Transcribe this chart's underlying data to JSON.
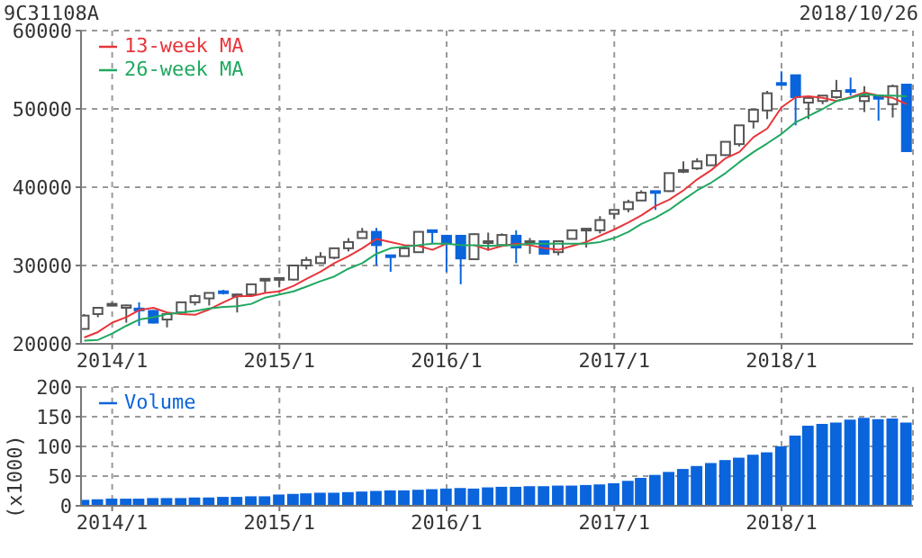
{
  "chart_data": [
    {
      "type": "candlestick",
      "title": "9C31108A",
      "subtitle": "2018/10/26",
      "x": [
        "2013-11",
        "2013-12",
        "2014-01",
        "2014-02",
        "2014-03",
        "2014-04",
        "2014-05",
        "2014-06",
        "2014-07",
        "2014-08",
        "2014-09",
        "2014-10",
        "2014-11",
        "2014-12",
        "2015-01",
        "2015-02",
        "2015-03",
        "2015-04",
        "2015-05",
        "2015-06",
        "2015-07",
        "2015-08",
        "2015-09",
        "2015-10",
        "2015-11",
        "2015-12",
        "2016-01",
        "2016-02",
        "2016-03",
        "2016-04",
        "2016-05",
        "2016-06",
        "2016-07",
        "2016-08",
        "2016-09",
        "2016-10",
        "2016-11",
        "2016-12",
        "2017-01",
        "2017-02",
        "2017-03",
        "2017-04",
        "2017-05",
        "2017-06",
        "2017-07",
        "2017-08",
        "2017-09",
        "2017-10",
        "2017-11",
        "2017-12",
        "2018-01",
        "2018-02",
        "2018-03",
        "2018-04",
        "2018-05",
        "2018-06",
        "2018-07",
        "2018-08",
        "2018-09",
        "2018-10"
      ],
      "ohlc": [
        [
          21900,
          23800,
          21800,
          23600
        ],
        [
          23800,
          24600,
          23400,
          24600
        ],
        [
          25000,
          25300,
          24800,
          25100
        ],
        [
          24600,
          25000,
          22700,
          24900
        ],
        [
          24500,
          25300,
          22300,
          24300
        ],
        [
          24200,
          24300,
          22600,
          22700
        ],
        [
          23100,
          23900,
          22100,
          23800
        ],
        [
          24000,
          25300,
          24000,
          25300
        ],
        [
          25300,
          26300,
          24900,
          26100
        ],
        [
          25800,
          26500,
          24900,
          26500
        ],
        [
          26700,
          26900,
          26300,
          26500
        ],
        [
          26200,
          26400,
          24000,
          26300
        ],
        [
          26300,
          27600,
          26200,
          27600
        ],
        [
          28200,
          28300,
          26500,
          28300
        ],
        [
          28300,
          28400,
          27200,
          28400
        ],
        [
          28200,
          30000,
          28100,
          30000
        ],
        [
          30000,
          31100,
          29500,
          30700
        ],
        [
          30300,
          31700,
          30300,
          31100
        ],
        [
          31000,
          32200,
          30800,
          32200
        ],
        [
          32200,
          33500,
          31800,
          33000
        ],
        [
          33500,
          34800,
          33500,
          34300
        ],
        [
          34300,
          34800,
          30000,
          32600
        ],
        [
          31300,
          31300,
          29200,
          31200
        ],
        [
          31200,
          32200,
          31200,
          32200
        ],
        [
          31700,
          34300,
          31700,
          34300
        ],
        [
          34500,
          34500,
          32800,
          34300
        ],
        [
          33800,
          33800,
          29200,
          32800
        ],
        [
          33800,
          33800,
          27600,
          30900
        ],
        [
          30800,
          34100,
          30800,
          34000
        ],
        [
          33000,
          34200,
          31900,
          33100
        ],
        [
          32600,
          34100,
          32600,
          33900
        ],
        [
          33800,
          34500,
          30300,
          32300
        ],
        [
          33000,
          33500,
          31500,
          33100
        ],
        [
          33100,
          33100,
          31500,
          31500
        ],
        [
          31700,
          33100,
          31300,
          33100
        ],
        [
          33400,
          34500,
          33400,
          34500
        ],
        [
          34600,
          34700,
          32300,
          34700
        ],
        [
          34500,
          36300,
          34100,
          35800
        ],
        [
          36600,
          37100,
          36000,
          37100
        ],
        [
          37200,
          38400,
          36800,
          38100
        ],
        [
          38300,
          39600,
          38300,
          39300
        ],
        [
          39500,
          39500,
          37100,
          39300
        ],
        [
          39500,
          41800,
          39400,
          41800
        ],
        [
          42100,
          43300,
          41800,
          42200
        ],
        [
          42400,
          43700,
          42200,
          43300
        ],
        [
          42800,
          44100,
          42800,
          44100
        ],
        [
          44100,
          45800,
          44000,
          45800
        ],
        [
          45500,
          47900,
          45200,
          47900
        ],
        [
          48400,
          49900,
          47500,
          49900
        ],
        [
          49800,
          52300,
          48700,
          52000
        ],
        [
          53300,
          54800,
          53200,
          53200
        ],
        [
          54300,
          54300,
          47900,
          51500
        ],
        [
          50800,
          51700,
          48700,
          51400
        ],
        [
          51000,
          51700,
          50600,
          51700
        ],
        [
          51500,
          53700,
          51300,
          52300
        ],
        [
          52400,
          54000,
          51700,
          52300
        ],
        [
          51000,
          52900,
          49600,
          51600
        ],
        [
          51700,
          51700,
          48500,
          51300
        ],
        [
          50600,
          53100,
          48900,
          52900
        ],
        [
          53100,
          53100,
          44600,
          44600
        ]
      ],
      "colors": [
        "#ffffff",
        "#ffffff",
        "#ffffff",
        "#ffffff",
        "#0a64dc",
        "#0a64dc",
        "#ffffff",
        "#ffffff",
        "#ffffff",
        "#ffffff",
        "#0a64dc",
        "#ffffff",
        "#ffffff",
        "#ffffff",
        "#ffffff",
        "#ffffff",
        "#ffffff",
        "#ffffff",
        "#ffffff",
        "#ffffff",
        "#ffffff",
        "#0a64dc",
        "#0a64dc",
        "#ffffff",
        "#ffffff",
        "#0a64dc",
        "#0a64dc",
        "#0a64dc",
        "#ffffff",
        "#ffffff",
        "#ffffff",
        "#0a64dc",
        "#ffffff",
        "#0a64dc",
        "#ffffff",
        "#ffffff",
        "#ffffff",
        "#ffffff",
        "#ffffff",
        "#ffffff",
        "#ffffff",
        "#0a64dc",
        "#ffffff",
        "#ffffff",
        "#ffffff",
        "#ffffff",
        "#ffffff",
        "#ffffff",
        "#ffffff",
        "#ffffff",
        "#0a64dc",
        "#0a64dc",
        "#ffffff",
        "#ffffff",
        "#ffffff",
        "#0a64dc",
        "#ffffff",
        "#0a64dc",
        "#ffffff",
        "#0a64dc"
      ],
      "series": [
        {
          "type": "line",
          "name": "13-week MA",
          "color": "#e8353a",
          "values": [
            20800,
            21500,
            22700,
            23400,
            24300,
            24600,
            24000,
            23800,
            23700,
            24400,
            25300,
            26100,
            26100,
            26500,
            26700,
            27400,
            28300,
            29200,
            30300,
            31200,
            32200,
            33400,
            33000,
            32600,
            32500,
            32000,
            32800,
            null,
            32600,
            32000,
            32500,
            32800,
            32600,
            32200,
            32000,
            32500,
            33000,
            33800,
            34600,
            35500,
            36400,
            37600,
            38400,
            39600,
            41000,
            42200,
            43700,
            44500,
            46400,
            47500,
            50200,
            51500,
            51600,
            51400,
            51000,
            51500,
            52100,
            51700,
            51400,
            50600
          ]
        },
        {
          "type": "line",
          "name": "26-week MA",
          "color": "#20a860",
          "values": [
            20400,
            20500,
            21300,
            22300,
            23100,
            23400,
            23800,
            24000,
            24200,
            24500,
            24700,
            24800,
            25100,
            25900,
            26300,
            26700,
            27300,
            28000,
            28600,
            29600,
            30300,
            31500,
            32200,
            32400,
            32600,
            32800,
            32800,
            32600,
            32600,
            32500,
            32600,
            32600,
            32800,
            32800,
            32800,
            32800,
            32800,
            33000,
            33500,
            34300,
            35300,
            36100,
            37100,
            38400,
            39600,
            40600,
            41800,
            43200,
            44500,
            45600,
            46800,
            48300,
            49100,
            50000,
            51000,
            51400,
            51900,
            51700,
            51700,
            51600
          ]
        }
      ],
      "xlim": [
        "2013-10-25",
        "2018-10-15"
      ],
      "xticks": [
        {
          "value": "2014-01",
          "label": "2014/1"
        },
        {
          "value": "2015-01",
          "label": "2015/1"
        },
        {
          "value": "2016-01",
          "label": "2016/1"
        },
        {
          "value": "2017-01",
          "label": "2017/1"
        },
        {
          "value": "2018-01",
          "label": "2018/1"
        }
      ],
      "ylim": [
        20000,
        60000
      ],
      "yticks": [
        20000,
        30000,
        40000,
        50000,
        60000
      ],
      "grid": true,
      "legend": "top left"
    },
    {
      "type": "bar",
      "ylabel": "(x1000)",
      "x": [
        "2013-11",
        "2013-12",
        "2014-01",
        "2014-02",
        "2014-03",
        "2014-04",
        "2014-05",
        "2014-06",
        "2014-07",
        "2014-08",
        "2014-09",
        "2014-10",
        "2014-11",
        "2014-12",
        "2015-01",
        "2015-02",
        "2015-03",
        "2015-04",
        "2015-05",
        "2015-06",
        "2015-07",
        "2015-08",
        "2015-09",
        "2015-10",
        "2015-11",
        "2015-12",
        "2016-01",
        "2016-02",
        "2016-03",
        "2016-04",
        "2016-05",
        "2016-06",
        "2016-07",
        "2016-08",
        "2016-09",
        "2016-10",
        "2016-11",
        "2016-12",
        "2017-01",
        "2017-02",
        "2017-03",
        "2017-04",
        "2017-05",
        "2017-06",
        "2017-07",
        "2017-08",
        "2017-09",
        "2017-10",
        "2017-11",
        "2017-12",
        "2018-01",
        "2018-02",
        "2018-03",
        "2018-04",
        "2018-05",
        "2018-06",
        "2018-07",
        "2018-08",
        "2018-09",
        "2018-10"
      ],
      "series": [
        {
          "name": "Volume",
          "color": "#0a64dc",
          "values": [
            10,
            11,
            12,
            12,
            12,
            13,
            13,
            13,
            14,
            14,
            15,
            15,
            16,
            16,
            19,
            20,
            21,
            22,
            22,
            23,
            24,
            25,
            26,
            26,
            27,
            28,
            29,
            30,
            29,
            31,
            32,
            32,
            33,
            33,
            34,
            34,
            35,
            36,
            38,
            42,
            47,
            52,
            57,
            62,
            67,
            72,
            77,
            81,
            86,
            90,
            100,
            118,
            135,
            138,
            140,
            145,
            148,
            146,
            147,
            140
          ]
        }
      ],
      "xlim": [
        "2013-10-25",
        "2018-10-15"
      ],
      "xticks": [
        {
          "value": "2014-01",
          "label": "2014/1"
        },
        {
          "value": "2015-01",
          "label": "2015/1"
        },
        {
          "value": "2016-01",
          "label": "2016/1"
        },
        {
          "value": "2017-01",
          "label": "2017/1"
        },
        {
          "value": "2018-01",
          "label": "2018/1"
        }
      ],
      "ylim": [
        0,
        200
      ],
      "yticks": [
        0,
        50,
        100,
        150,
        200
      ],
      "grid": true,
      "legend": "top left"
    }
  ]
}
